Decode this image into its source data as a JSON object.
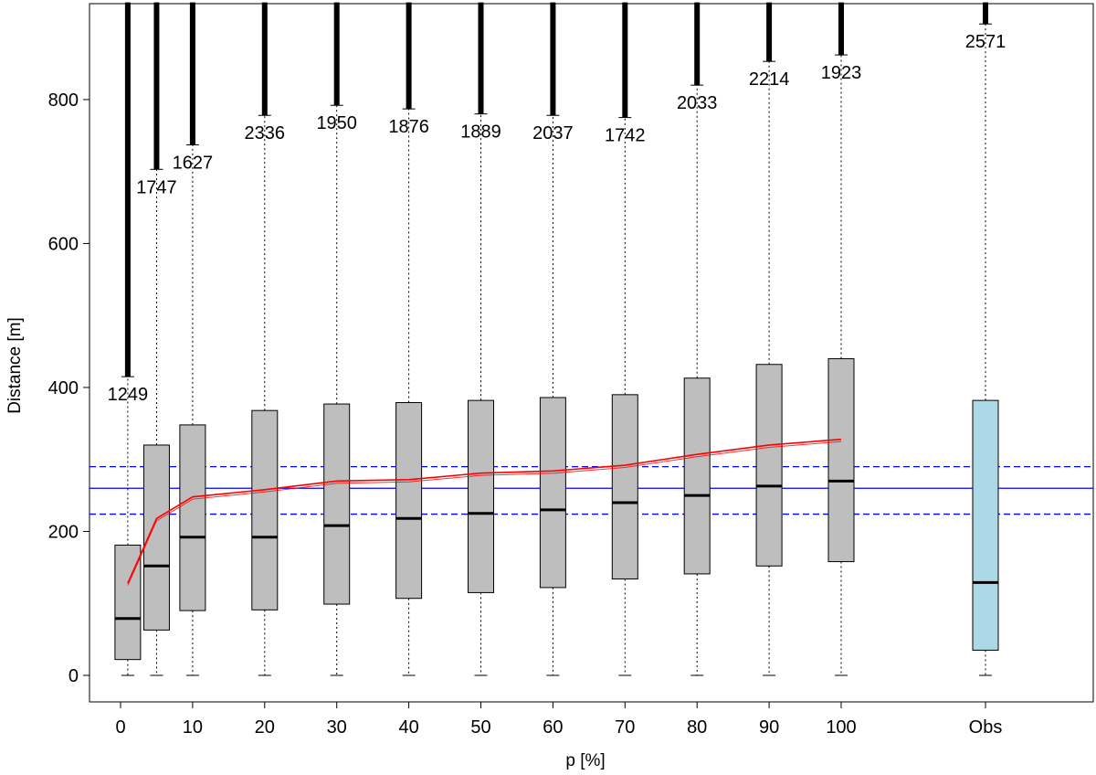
{
  "chart_data": {
    "type": "box",
    "xlabel": "p [%]",
    "ylabel": "Distance [m]",
    "ylim": [
      -35,
      935
    ],
    "y_ticks": [
      0,
      200,
      400,
      600,
      800
    ],
    "x_tick_labels": [
      "0",
      "10",
      "20",
      "30",
      "40",
      "50",
      "60",
      "70",
      "80",
      "90",
      "100",
      "Obs"
    ],
    "colors": {
      "box_fill": "#bebebe",
      "obs_fill": "#add8e6",
      "mean_line": "#ff0000",
      "reference_line": "#0000ff"
    },
    "boxes": [
      {
        "x": 1,
        "label": "",
        "q1": 22,
        "median": 79,
        "q3": 181,
        "whisker_low": 0,
        "whisker_high": 415,
        "outlier_count": "1249",
        "fill": "grey"
      },
      {
        "x": 5,
        "label": "",
        "q1": 63,
        "median": 152,
        "q3": 320,
        "whisker_low": 0,
        "whisker_high": 703,
        "outlier_count": "1747",
        "fill": "grey"
      },
      {
        "x": 10,
        "label": "10",
        "q1": 90,
        "median": 192,
        "q3": 348,
        "whisker_low": 0,
        "whisker_high": 737,
        "outlier_count": "1627",
        "fill": "grey"
      },
      {
        "x": 20,
        "label": "20",
        "q1": 91,
        "median": 192,
        "q3": 368,
        "whisker_low": 0,
        "whisker_high": 778,
        "outlier_count": "2336",
        "fill": "grey"
      },
      {
        "x": 30,
        "label": "30",
        "q1": 99,
        "median": 208,
        "q3": 377,
        "whisker_low": 0,
        "whisker_high": 792,
        "outlier_count": "1950",
        "fill": "grey"
      },
      {
        "x": 40,
        "label": "40",
        "q1": 107,
        "median": 218,
        "q3": 379,
        "whisker_low": 0,
        "whisker_high": 787,
        "outlier_count": "1876",
        "fill": "grey"
      },
      {
        "x": 50,
        "label": "50",
        "q1": 115,
        "median": 225,
        "q3": 382,
        "whisker_low": 0,
        "whisker_high": 780,
        "outlier_count": "1889",
        "fill": "grey"
      },
      {
        "x": 60,
        "label": "60",
        "q1": 122,
        "median": 230,
        "q3": 386,
        "whisker_low": 0,
        "whisker_high": 778,
        "outlier_count": "2037",
        "fill": "grey"
      },
      {
        "x": 70,
        "label": "70",
        "q1": 134,
        "median": 240,
        "q3": 390,
        "whisker_low": 0,
        "whisker_high": 775,
        "outlier_count": "1742",
        "fill": "grey"
      },
      {
        "x": 80,
        "label": "80",
        "q1": 141,
        "median": 250,
        "q3": 413,
        "whisker_low": 0,
        "whisker_high": 820,
        "outlier_count": "2033",
        "fill": "grey"
      },
      {
        "x": 90,
        "label": "90",
        "q1": 152,
        "median": 263,
        "q3": 432,
        "whisker_low": 0,
        "whisker_high": 853,
        "outlier_count": "2214",
        "fill": "grey"
      },
      {
        "x": 100,
        "label": "100",
        "q1": 158,
        "median": 270,
        "q3": 440,
        "whisker_low": 0,
        "whisker_high": 862,
        "outlier_count": "1923",
        "fill": "grey"
      },
      {
        "x": 120,
        "label": "Obs",
        "q1": 35,
        "median": 129,
        "q3": 382,
        "whisker_low": 0,
        "whisker_high": 905,
        "outlier_count": "2571",
        "fill": "lightblue"
      }
    ],
    "mean_line": {
      "x": [
        1,
        5,
        10,
        20,
        30,
        40,
        50,
        60,
        70,
        80,
        90,
        100
      ],
      "y": [
        128,
        218,
        248,
        258,
        270,
        272,
        281,
        284,
        292,
        307,
        320,
        328
      ]
    },
    "hlines": [
      {
        "y": 260,
        "style": "solid"
      },
      {
        "y": 290,
        "style": "dashed"
      },
      {
        "y": 224,
        "style": "dashed"
      }
    ]
  }
}
